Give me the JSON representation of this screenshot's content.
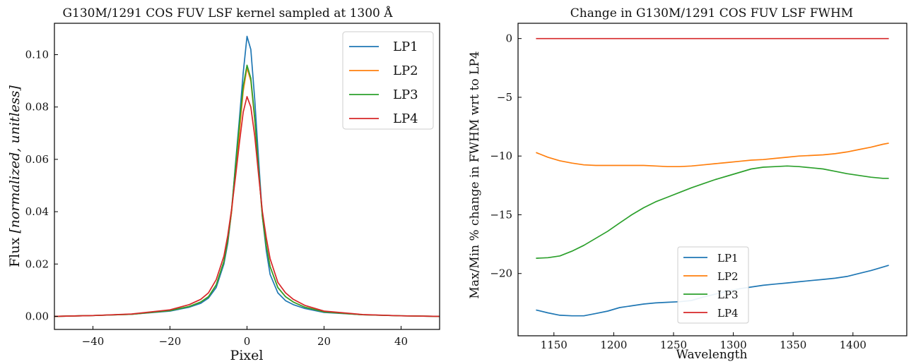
{
  "colors": {
    "LP1": "#1f77b4",
    "LP2": "#ff7f0e",
    "LP3": "#2ca02c",
    "LP4": "#d62728"
  },
  "chart_data": [
    {
      "type": "line",
      "title": "G130M/1291 COS FUV LSF kernel sampled at 1300 Å",
      "xlabel": "Pixel",
      "ylabel_main": "Flux ",
      "ylabel_italic": "[normalized, unitless]",
      "xlim": [
        -50,
        50
      ],
      "ylim": [
        -0.005,
        0.112
      ],
      "xticks": [
        -40,
        -20,
        0,
        20,
        40
      ],
      "xtick_labels": [
        "−40",
        "−20",
        "0",
        "20",
        "40"
      ],
      "yticks": [
        0.0,
        0.02,
        0.04,
        0.06,
        0.08,
        0.1
      ],
      "ytick_labels": [
        "0.00",
        "0.02",
        "0.04",
        "0.06",
        "0.08",
        "0.10"
      ],
      "legend_position": "top-right",
      "series": [
        {
          "name": "LP1",
          "x": [
            -50,
            -40,
            -30,
            -20,
            -15,
            -12,
            -10,
            -8,
            -6,
            -5,
            -4,
            -3,
            -2,
            -1,
            0,
            1,
            2,
            3,
            4,
            5,
            6,
            8,
            10,
            12,
            15,
            20,
            30,
            40,
            50
          ],
          "y": [
            0.0,
            0.0003,
            0.0008,
            0.002,
            0.0035,
            0.005,
            0.007,
            0.011,
            0.02,
            0.028,
            0.04,
            0.058,
            0.075,
            0.093,
            0.107,
            0.102,
            0.083,
            0.06,
            0.038,
            0.025,
            0.016,
            0.009,
            0.006,
            0.0045,
            0.003,
            0.0015,
            0.0006,
            0.0002,
            0.0
          ]
        },
        {
          "name": "LP2",
          "x": [
            -50,
            -40,
            -30,
            -20,
            -15,
            -12,
            -10,
            -8,
            -6,
            -5,
            -4,
            -3,
            -2,
            -1,
            0,
            1,
            2,
            3,
            4,
            5,
            6,
            8,
            10,
            12,
            15,
            20,
            30,
            40,
            50
          ],
          "y": [
            0.0,
            0.0003,
            0.0008,
            0.0022,
            0.0038,
            0.0055,
            0.0075,
            0.012,
            0.021,
            0.029,
            0.04,
            0.055,
            0.07,
            0.086,
            0.095,
            0.09,
            0.075,
            0.056,
            0.038,
            0.027,
            0.019,
            0.011,
            0.0075,
            0.0055,
            0.0035,
            0.0017,
            0.0006,
            0.0002,
            0.0
          ]
        },
        {
          "name": "LP3",
          "x": [
            -50,
            -40,
            -30,
            -20,
            -15,
            -12,
            -10,
            -8,
            -6,
            -5,
            -4,
            -3,
            -2,
            -1,
            0,
            1,
            2,
            3,
            4,
            5,
            6,
            8,
            10,
            12,
            15,
            20,
            30,
            40,
            50
          ],
          "y": [
            0.0,
            0.0003,
            0.0008,
            0.0022,
            0.0038,
            0.0055,
            0.0075,
            0.012,
            0.021,
            0.029,
            0.041,
            0.057,
            0.073,
            0.088,
            0.096,
            0.091,
            0.076,
            0.056,
            0.038,
            0.027,
            0.019,
            0.011,
            0.0075,
            0.0055,
            0.0035,
            0.0017,
            0.0006,
            0.0002,
            0.0
          ]
        },
        {
          "name": "LP4",
          "x": [
            -50,
            -40,
            -30,
            -20,
            -15,
            -12,
            -10,
            -8,
            -6,
            -5,
            -4,
            -3,
            -2,
            -1,
            0,
            1,
            2,
            3,
            4,
            5,
            6,
            8,
            10,
            12,
            15,
            20,
            30,
            40,
            50
          ],
          "y": [
            0.0,
            0.0003,
            0.0009,
            0.0025,
            0.0045,
            0.0065,
            0.009,
            0.014,
            0.023,
            0.031,
            0.041,
            0.053,
            0.066,
            0.078,
            0.084,
            0.08,
            0.069,
            0.054,
            0.04,
            0.03,
            0.022,
            0.013,
            0.009,
            0.0065,
            0.0042,
            0.002,
            0.0007,
            0.0002,
            0.0
          ]
        }
      ]
    },
    {
      "type": "line",
      "title": "Change in G130M/1291 COS FUV LSF FWHM",
      "xlabel": "Wavelength",
      "ylabel": "Max/Min % change in FWHM wrt to LP4",
      "xlim": [
        1120,
        1445
      ],
      "ylim": [
        -25.3,
        1.3
      ],
      "xticks": [
        1150,
        1200,
        1250,
        1300,
        1350,
        1400
      ],
      "xtick_labels": [
        "1150",
        "1200",
        "1250",
        "1300",
        "1350",
        "1400"
      ],
      "yticks": [
        0,
        -5,
        -10,
        -15,
        -20
      ],
      "ytick_labels": [
        "0",
        "−5",
        "−10",
        "−15",
        "−20"
      ],
      "legend_position": "lower-center",
      "series": [
        {
          "name": "LP1",
          "x": [
            1135,
            1145,
            1155,
            1165,
            1175,
            1185,
            1195,
            1205,
            1215,
            1225,
            1235,
            1245,
            1255,
            1265,
            1275,
            1285,
            1295,
            1305,
            1315,
            1325,
            1335,
            1345,
            1355,
            1365,
            1375,
            1385,
            1395,
            1405,
            1415,
            1425,
            1430
          ],
          "y": [
            -23.1,
            -23.35,
            -23.55,
            -23.6,
            -23.6,
            -23.4,
            -23.2,
            -22.9,
            -22.75,
            -22.6,
            -22.5,
            -22.45,
            -22.4,
            -22.3,
            -22.0,
            -21.75,
            -21.5,
            -21.3,
            -21.15,
            -21.0,
            -20.9,
            -20.8,
            -20.7,
            -20.6,
            -20.5,
            -20.4,
            -20.25,
            -20.0,
            -19.75,
            -19.45,
            -19.3
          ]
        },
        {
          "name": "LP2",
          "x": [
            1135,
            1145,
            1155,
            1165,
            1175,
            1185,
            1195,
            1205,
            1215,
            1225,
            1235,
            1245,
            1255,
            1265,
            1275,
            1285,
            1295,
            1305,
            1315,
            1325,
            1335,
            1345,
            1355,
            1365,
            1375,
            1385,
            1395,
            1405,
            1415,
            1425,
            1430
          ],
          "y": [
            -9.7,
            -10.1,
            -10.4,
            -10.6,
            -10.75,
            -10.8,
            -10.8,
            -10.8,
            -10.8,
            -10.8,
            -10.85,
            -10.9,
            -10.9,
            -10.85,
            -10.75,
            -10.65,
            -10.55,
            -10.45,
            -10.35,
            -10.3,
            -10.2,
            -10.1,
            -10.0,
            -9.95,
            -9.9,
            -9.8,
            -9.65,
            -9.45,
            -9.25,
            -9.0,
            -8.9
          ]
        },
        {
          "name": "LP3",
          "x": [
            1135,
            1145,
            1155,
            1165,
            1175,
            1185,
            1195,
            1205,
            1215,
            1225,
            1235,
            1245,
            1255,
            1265,
            1275,
            1285,
            1295,
            1305,
            1315,
            1325,
            1335,
            1345,
            1355,
            1365,
            1375,
            1385,
            1395,
            1405,
            1415,
            1425,
            1430
          ],
          "y": [
            -18.7,
            -18.65,
            -18.5,
            -18.1,
            -17.6,
            -17.0,
            -16.4,
            -15.7,
            -15.0,
            -14.4,
            -13.9,
            -13.5,
            -13.1,
            -12.7,
            -12.35,
            -12.0,
            -11.7,
            -11.4,
            -11.1,
            -10.95,
            -10.9,
            -10.85,
            -10.9,
            -11.0,
            -11.1,
            -11.3,
            -11.5,
            -11.65,
            -11.8,
            -11.9,
            -11.9
          ]
        },
        {
          "name": "LP4",
          "x": [
            1135,
            1430
          ],
          "y": [
            0.0,
            0.0
          ]
        }
      ]
    }
  ]
}
